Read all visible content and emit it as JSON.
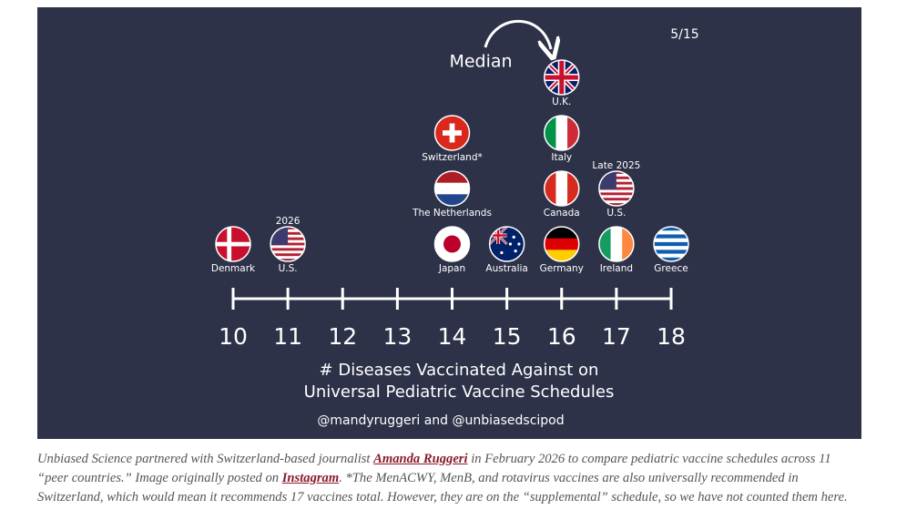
{
  "chart_data": {
    "type": "dotplot",
    "page": "5/15",
    "annotation": "Median",
    "xlabel": [
      "# Diseases Vaccinated Against on",
      "Universal Pediatric Vaccine Schedules"
    ],
    "credit": "@mandyruggeri and @unbiasedscipod",
    "xlim": [
      10,
      18
    ],
    "xticks": [
      10,
      11,
      12,
      13,
      14,
      15,
      16,
      17,
      18
    ],
    "points": [
      {
        "label": "Denmark",
        "value": 10,
        "flag": "cross",
        "colors": [
          "#c8102e",
          "#ffffff"
        ]
      },
      {
        "label": "U.S.",
        "note": "2026",
        "value": 11,
        "flag": "stars",
        "colors": [
          "#b22234",
          "#ffffff",
          "#3c3b6e"
        ]
      },
      {
        "label": "Japan",
        "value": 14,
        "flag": "disc",
        "colors": [
          "#ffffff",
          "#bc002d"
        ]
      },
      {
        "label": "The Netherlands",
        "value": 14,
        "flag": "stripes-h",
        "colors": [
          "#ae1c28",
          "#ffffff",
          "#21468b"
        ]
      },
      {
        "label": "Switzerland*",
        "value": 14,
        "flag": "plus",
        "colors": [
          "#da291c",
          "#ffffff"
        ]
      },
      {
        "label": "Australia",
        "value": 15,
        "flag": "canton",
        "colors": [
          "#012169",
          "#ffffff",
          "#c8102e"
        ]
      },
      {
        "label": "Germany",
        "value": 16,
        "flag": "stripes-h",
        "colors": [
          "#000000",
          "#dd0000",
          "#ffce00"
        ]
      },
      {
        "label": "Canada",
        "value": 16,
        "flag": "stripes-v",
        "colors": [
          "#d52b1e",
          "#ffffff",
          "#d52b1e"
        ]
      },
      {
        "label": "Italy",
        "value": 16,
        "flag": "stripes-v",
        "colors": [
          "#009246",
          "#ffffff",
          "#ce2b37"
        ]
      },
      {
        "label": "U.K.",
        "value": 16,
        "flag": "union",
        "colors": [
          "#012169",
          "#ffffff",
          "#c8102e"
        ]
      },
      {
        "label": "Ireland",
        "value": 17,
        "flag": "stripes-v",
        "colors": [
          "#169b62",
          "#ffffff",
          "#ff883e"
        ]
      },
      {
        "label": "U.S.",
        "note": "Late 2025",
        "value": 17,
        "flag": "stars",
        "colors": [
          "#b22234",
          "#ffffff",
          "#3c3b6e"
        ]
      },
      {
        "label": "Greece",
        "value": 18,
        "flag": "stripes-h",
        "colors": [
          "#0d5eaf",
          "#ffffff",
          "#0d5eaf",
          "#ffffff",
          "#0d5eaf",
          "#ffffff",
          "#0d5eaf",
          "#ffffff",
          "#0d5eaf"
        ]
      }
    ]
  },
  "caption": [
    "Unbiased Science partnered with Switzerland-based journalist ",
    "Amanda Ruggeri",
    " in February 2026 to compare pediatric vaccine schedules across 11 “peer countries.” Image originally posted on ",
    "Instagram",
    ". *The MenACWY, MenB, and rotavirus vaccines are also universally recommended in Switzerland, which would mean it recommends 17 vaccines total. However, they are on the “supplemental” schedule, so we have not counted them here."
  ]
}
